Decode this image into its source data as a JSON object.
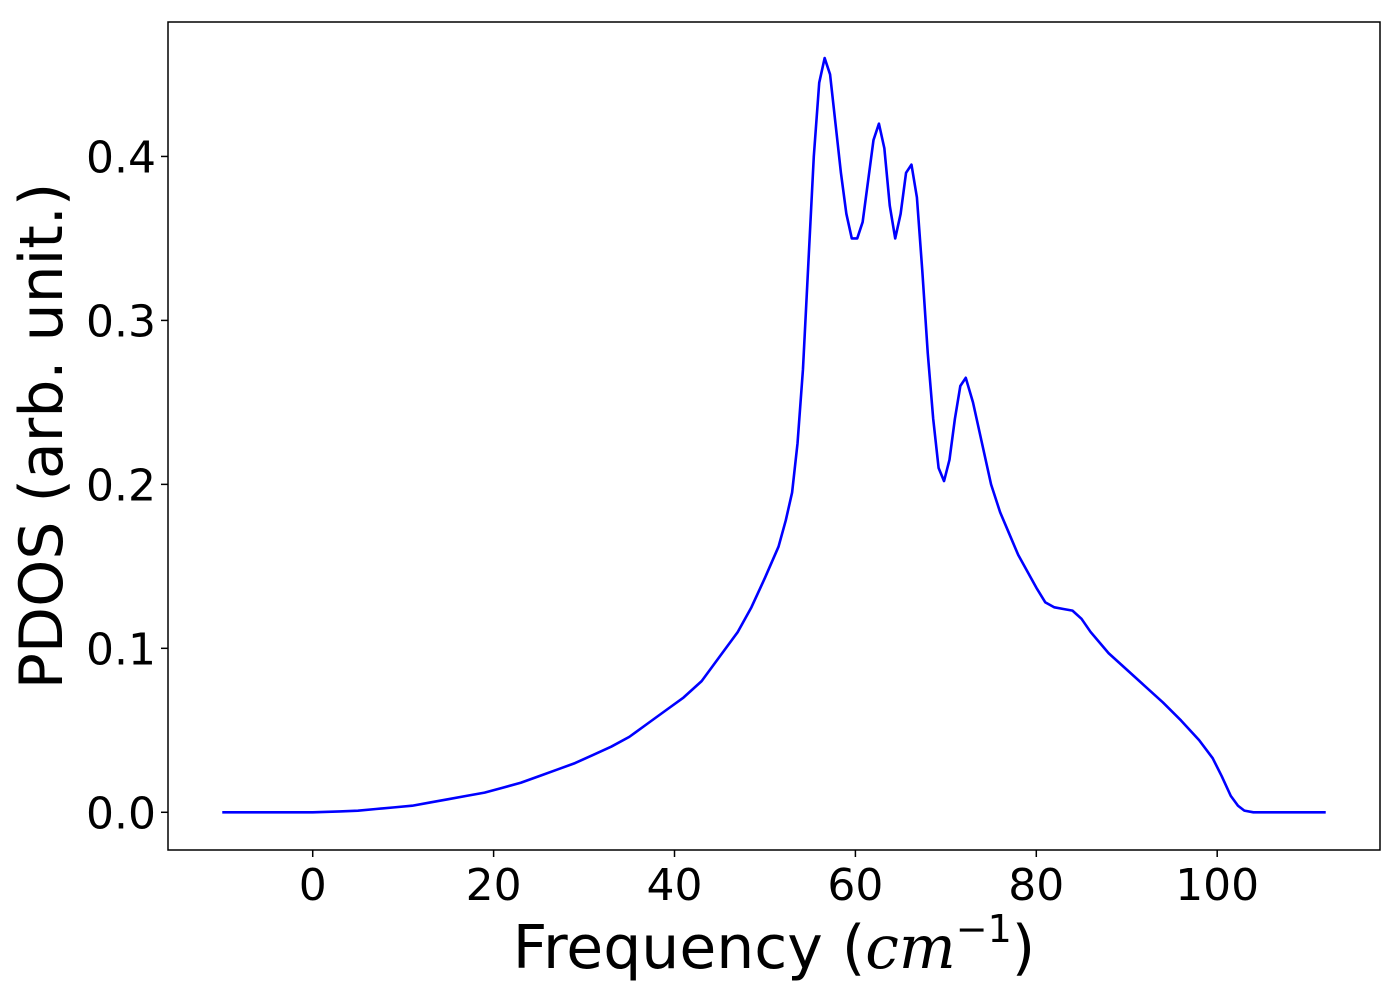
{
  "chart_data": {
    "type": "line",
    "title": "",
    "xlabel_main": "Frequency (",
    "xlabel_math": "cm",
    "xlabel_sup": "−1",
    "xlabel_close": ")",
    "ylabel": "PDOS (arb. unit.)",
    "xlim": [
      -16,
      118
    ],
    "ylim": [
      -0.023,
      0.482
    ],
    "xticks": [
      0,
      20,
      40,
      60,
      80,
      100
    ],
    "xtick_labels": [
      "0",
      "20",
      "40",
      "60",
      "80",
      "100"
    ],
    "yticks": [
      0.0,
      0.1,
      0.2,
      0.3,
      0.4
    ],
    "ytick_labels": [
      "0.0",
      "0.1",
      "0.2",
      "0.3",
      "0.4"
    ],
    "grid": false,
    "legend": "none",
    "series": [
      {
        "color": "#0000ff",
        "x": [
          -10,
          -5,
          0,
          3,
          5,
          7,
          9,
          11,
          13,
          15,
          17,
          19,
          21,
          23,
          25,
          27,
          29,
          31,
          33,
          35,
          37,
          39,
          41,
          43,
          45,
          47,
          48.5,
          50,
          51.5,
          52.3,
          53,
          53.6,
          54.2,
          54.8,
          55.4,
          56,
          56.6,
          57.2,
          57.8,
          58.4,
          59,
          59.6,
          60.2,
          60.8,
          61.4,
          62,
          62.6,
          63.2,
          63.8,
          64.4,
          65,
          65.6,
          66.2,
          66.8,
          67.4,
          68,
          68.6,
          69.2,
          69.8,
          70.4,
          71,
          71.6,
          72.2,
          73,
          74,
          75,
          76,
          77,
          78,
          79,
          80,
          81,
          82,
          83,
          84,
          85,
          86,
          88,
          90,
          92,
          94,
          96,
          98,
          99.5,
          100.5,
          101.5,
          102.3,
          103,
          104,
          106,
          110,
          112
        ],
        "y": [
          0.0,
          0.0,
          0.0,
          0.0005,
          0.001,
          0.002,
          0.003,
          0.004,
          0.006,
          0.008,
          0.01,
          0.012,
          0.015,
          0.018,
          0.022,
          0.026,
          0.03,
          0.035,
          0.04,
          0.046,
          0.054,
          0.062,
          0.07,
          0.08,
          0.095,
          0.11,
          0.125,
          0.143,
          0.162,
          0.178,
          0.195,
          0.225,
          0.27,
          0.335,
          0.4,
          0.445,
          0.46,
          0.45,
          0.42,
          0.39,
          0.365,
          0.35,
          0.35,
          0.36,
          0.385,
          0.41,
          0.42,
          0.405,
          0.37,
          0.35,
          0.365,
          0.39,
          0.395,
          0.375,
          0.33,
          0.28,
          0.24,
          0.21,
          0.202,
          0.215,
          0.24,
          0.26,
          0.265,
          0.25,
          0.225,
          0.2,
          0.183,
          0.17,
          0.157,
          0.147,
          0.137,
          0.128,
          0.125,
          0.124,
          0.123,
          0.118,
          0.11,
          0.097,
          0.087,
          0.077,
          0.067,
          0.056,
          0.044,
          0.033,
          0.022,
          0.01,
          0.004,
          0.001,
          0.0,
          0.0,
          0.0,
          0.0
        ]
      }
    ]
  }
}
